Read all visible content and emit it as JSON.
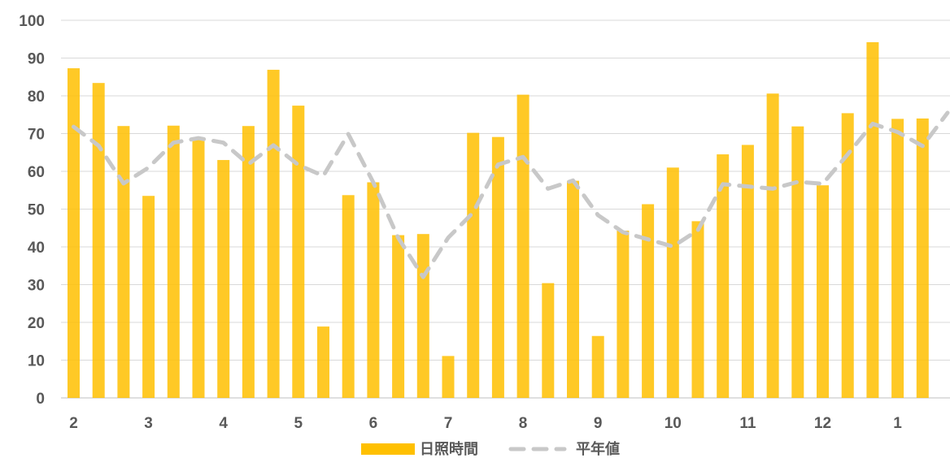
{
  "chart_data": {
    "type": "bar",
    "title": "",
    "xlabel": "",
    "ylabel": "",
    "ylim": [
      0,
      100
    ],
    "yticks": [
      0,
      10,
      20,
      30,
      40,
      50,
      60,
      70,
      80,
      90,
      100
    ],
    "grid": true,
    "legend_position": "bottom",
    "x_tick_labels": [
      {
        "label": "2",
        "index": 0
      },
      {
        "label": "3",
        "index": 3
      },
      {
        "label": "4",
        "index": 6
      },
      {
        "label": "5",
        "index": 9
      },
      {
        "label": "6",
        "index": 12
      },
      {
        "label": "7",
        "index": 15
      },
      {
        "label": "8",
        "index": 18
      },
      {
        "label": "9",
        "index": 21
      },
      {
        "label": "10",
        "index": 24
      },
      {
        "label": "11",
        "index": 27
      },
      {
        "label": "12",
        "index": 30
      },
      {
        "label": "1",
        "index": 33
      }
    ],
    "series": [
      {
        "name": "日照時間",
        "type": "bar",
        "color": "#ffc000",
        "values": [
          87.3,
          83.4,
          72.0,
          53.5,
          72.1,
          68.5,
          63.0,
          72.0,
          86.9,
          77.4,
          18.9,
          53.7,
          57.1,
          43.1,
          43.4,
          11.1,
          70.2,
          69.1,
          80.3,
          30.4,
          57.5,
          16.4,
          44.3,
          51.3,
          61.0,
          46.8,
          64.5,
          67.0,
          80.6,
          71.9,
          56.3,
          75.4,
          94.2,
          73.9,
          74.0
        ]
      },
      {
        "name": "平年値",
        "type": "line",
        "style": "dashed",
        "color": "#c8c8c8",
        "values": [
          71.8,
          66.8,
          56.8,
          61.0,
          67.6,
          68.8,
          67.6,
          61.9,
          66.9,
          61.7,
          58.8,
          69.9,
          57.1,
          42.4,
          32.0,
          42.4,
          49.1,
          61.8,
          63.8,
          55.4,
          57.6,
          48.4,
          43.9,
          42.0,
          40.1,
          44.4,
          56.6,
          56.0,
          55.4,
          57.2,
          56.7,
          64.5,
          72.6,
          70.4,
          66.7,
          75.5
        ]
      }
    ]
  }
}
